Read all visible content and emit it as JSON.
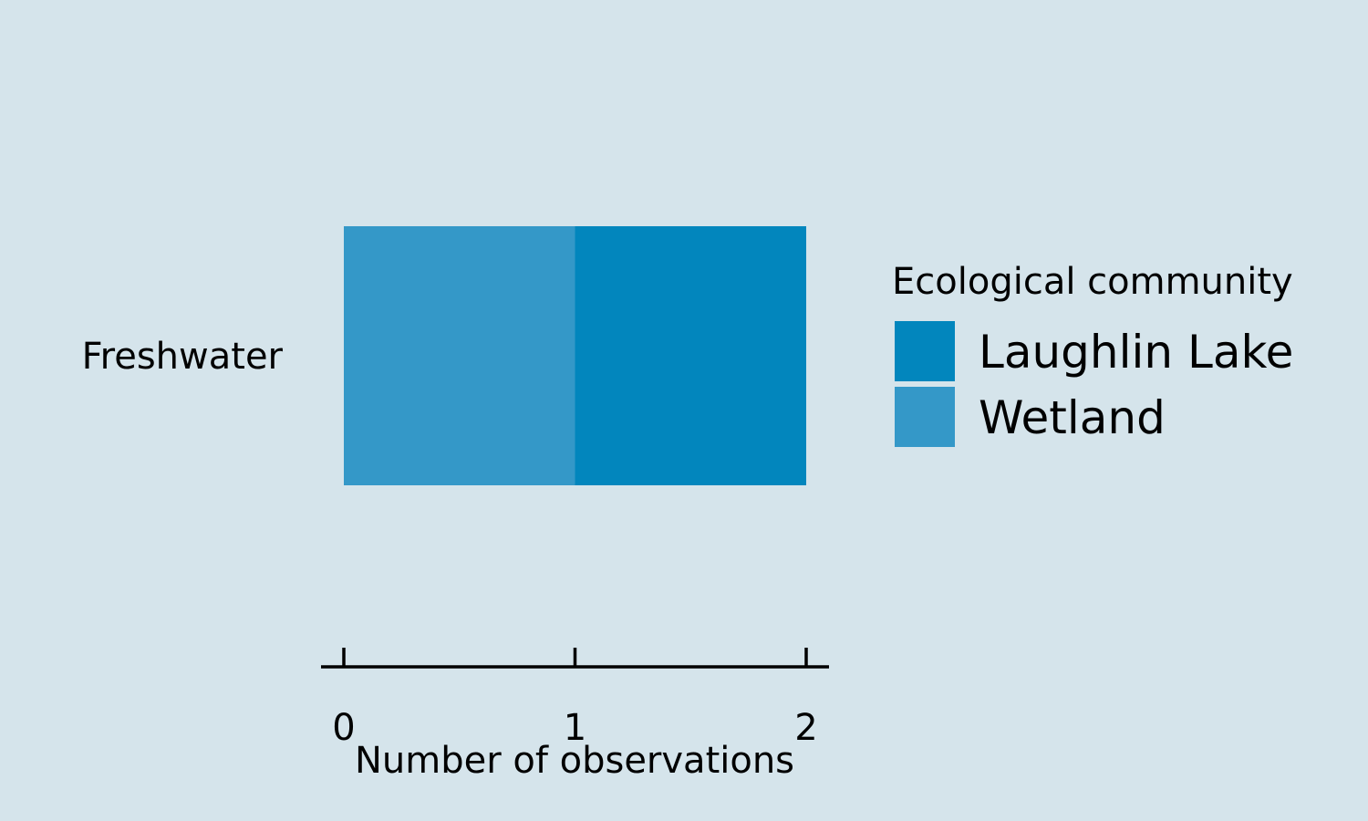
{
  "chart_data": {
    "type": "bar",
    "orientation": "horizontal",
    "stacked": true,
    "categories": [
      "Freshwater"
    ],
    "series": [
      {
        "name": "Wetland",
        "values": [
          1
        ],
        "color": "#3498c8"
      },
      {
        "name": "Laughlin Lake",
        "values": [
          1
        ],
        "color": "#0286bd"
      }
    ],
    "xlabel": "Number of observations",
    "ylabel": "",
    "xlim": [
      0,
      2
    ],
    "xticks": [
      0,
      1,
      2
    ],
    "grid": false,
    "legend": {
      "title": "Ecological community",
      "placement": "right",
      "entries": [
        "Laughlin Lake",
        "Wetland"
      ]
    },
    "background": "#d5e4eb"
  }
}
